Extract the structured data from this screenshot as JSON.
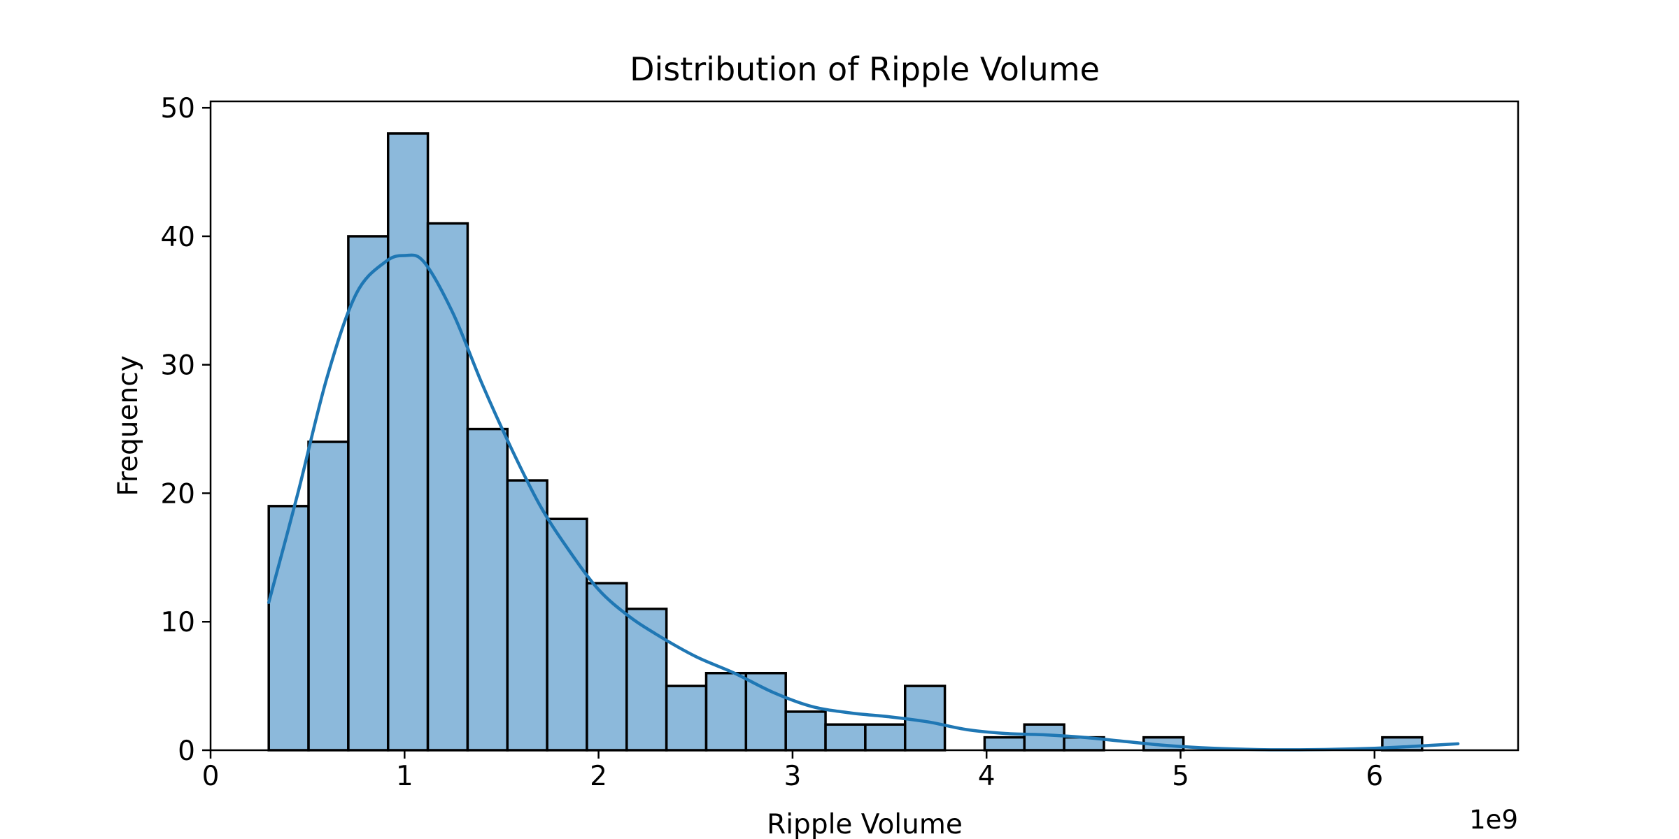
{
  "chart_data": {
    "type": "histogram",
    "title": "Distribution of Ripple Volume",
    "xlabel": "Ripple Volume",
    "ylabel": "Frequency",
    "x_offset_label": "1e9",
    "xlim": [
      0,
      6.74
    ],
    "ylim": [
      0,
      50.5
    ],
    "x_ticks": [
      0,
      1,
      2,
      3,
      4,
      5,
      6
    ],
    "y_ticks": [
      0,
      10,
      20,
      30,
      40,
      50
    ],
    "bin_start": 0.3,
    "bin_width": 0.205,
    "counts": [
      19,
      24,
      40,
      48,
      41,
      25,
      21,
      18,
      13,
      11,
      5,
      6,
      6,
      3,
      2,
      2,
      5,
      0,
      1,
      2,
      1,
      0,
      1,
      0,
      0,
      0,
      0,
      0,
      1
    ],
    "kde": {
      "x": [
        0.3,
        0.45,
        0.6,
        0.75,
        0.9,
        1.0,
        1.1,
        1.25,
        1.4,
        1.55,
        1.7,
        1.85,
        2.0,
        2.15,
        2.3,
        2.5,
        2.7,
        2.9,
        3.1,
        3.3,
        3.5,
        3.7,
        3.9,
        4.1,
        4.3,
        4.5,
        4.7,
        4.9,
        5.1,
        5.4,
        5.7,
        6.0,
        6.2,
        6.43
      ],
      "y": [
        11.5,
        20,
        29,
        35.5,
        38,
        38.5,
        38,
        34,
        28.5,
        23.5,
        19,
        15.5,
        12.5,
        10.5,
        9,
        7.3,
        6,
        4.5,
        3.4,
        2.9,
        2.6,
        2.2,
        1.6,
        1.3,
        1.2,
        1.0,
        0.7,
        0.4,
        0.2,
        0.05,
        0.05,
        0.15,
        0.3,
        0.5
      ]
    },
    "colors": {
      "bar_fill": "#8cb9db",
      "bar_edge": "#000000",
      "kde_line": "#1f77b4"
    },
    "grid": false,
    "legend": "none"
  }
}
